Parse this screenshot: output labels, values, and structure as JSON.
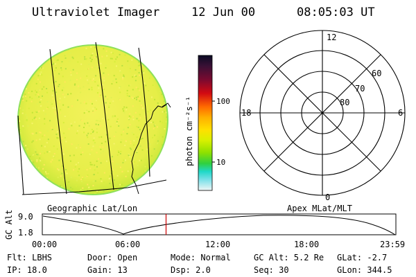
{
  "header": {
    "instrument": "Ultraviolet Imager",
    "date": "12 Jun 00",
    "time": "08:05:03 UT"
  },
  "colorbar": {
    "unit_label": "photon cm⁻²s⁻¹",
    "ticks": [
      "100",
      "10"
    ],
    "colors": [
      "#0b0b24",
      "#3a1035",
      "#7a0a30",
      "#d20a12",
      "#ff6a00",
      "#ffb000",
      "#ffe000",
      "#d8f000",
      "#8ee000",
      "#30d040",
      "#20d8c8",
      "#7ae0e8",
      "#d8f0f0"
    ]
  },
  "geo_panel": {
    "label": "Geographic Lat/Lon",
    "disk_color": "#eef04a"
  },
  "polar_panel": {
    "label": "Apex MLat/MLT",
    "mlt_labels": {
      "top": "12",
      "left": "18",
      "right": "6",
      "bottom": "0"
    },
    "lat_labels": [
      "60",
      "70",
      "80"
    ]
  },
  "altitude_plot": {
    "axis_label": "GC Alt",
    "y_ticks": [
      "9.0",
      "1.8"
    ],
    "x_ticks": [
      "00:00",
      "06:00",
      "12:00",
      "18:00",
      "23:59"
    ],
    "current_time_fraction": 0.35,
    "marker_color": "#cc0000"
  },
  "info": {
    "filter": "Flt: LBHS",
    "door": "Door: Open",
    "mode": "Mode: Normal",
    "gc_alt": "GC Alt: 5.2 Re",
    "glat": "GLat:  -2.7",
    "ip": "IP: 18.0",
    "gain": "Gain: 13",
    "dsp": "Dsp:    2.0",
    "seq": "Seq: 30",
    "glon": "GLon: 344.5"
  }
}
